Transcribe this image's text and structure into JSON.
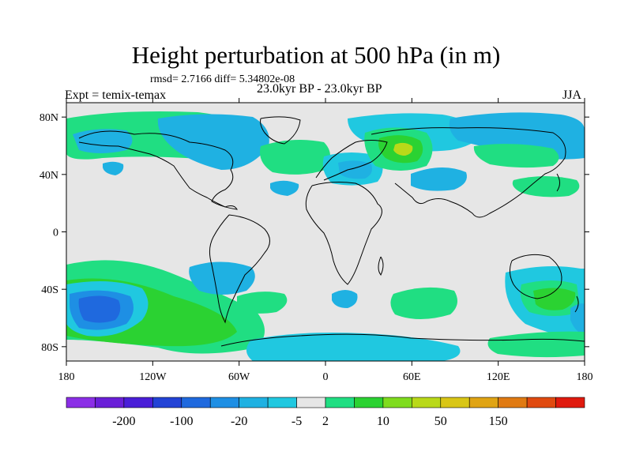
{
  "title": "Height perturbation at 500 hPa (in m)",
  "stats": "rmsd= 2.7166 diff= 5.34802e-08",
  "period": "23.0kyr BP - 23.0kyr BP",
  "expt": "Expt = temix-temax",
  "season": "JJA",
  "lat_labels": [
    "80N",
    "40N",
    "0",
    "40S",
    "80S"
  ],
  "lat_values": [
    80,
    40,
    0,
    -40,
    -80
  ],
  "lon_labels": [
    "180",
    "120W",
    "60W",
    "0",
    "60E",
    "120E",
    "180"
  ],
  "lon_values": [
    -180,
    -120,
    -60,
    0,
    60,
    120,
    180
  ],
  "colorbar": {
    "colors": [
      "#8b2fe6",
      "#6a1fd8",
      "#4a1ed8",
      "#2343d6",
      "#1f69de",
      "#1e8fe4",
      "#1fb1e2",
      "#20c8e0",
      "#e6e6e6",
      "#20de82",
      "#2bd232",
      "#7fdc1e",
      "#b9d919",
      "#d9c616",
      "#e0a414",
      "#e07a12",
      "#e04a10",
      "#e01a0e"
    ],
    "labels": [
      "-200",
      "-100",
      "-20",
      "-5",
      "2",
      "10",
      "50",
      "150"
    ],
    "label_after_box": [
      1,
      3,
      5,
      7,
      8,
      10,
      12,
      14
    ]
  },
  "map_colors": {
    "neutral": "#e6e6e6",
    "light_green": "#20de82",
    "green": "#2bd232",
    "yellow_green": "#b9d919",
    "light_blue": "#20c8e0",
    "sky_blue": "#1fb1e2",
    "mid_blue": "#1e8fe4",
    "dark_blue": "#1f69de"
  }
}
